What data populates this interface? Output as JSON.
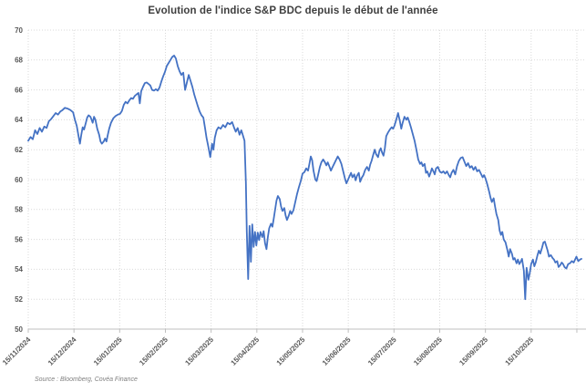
{
  "title": "Evolution de l'indice S&P BDC depuis le début de l'année",
  "source": "Source : Bloomberg, Covéa Finance",
  "colors": {
    "line": "#4472C4",
    "title_text": "#3F3F3F",
    "tick_text": "#595959",
    "gridline": "#D9D9D9",
    "axis_line": "#BFBFBF",
    "background": "#FFFFFF"
  },
  "chart_data": {
    "type": "line",
    "title": "Evolution de l'indice S&P BDC depuis le début de l'année",
    "series_name": "Indice S&P BDC",
    "xlabel": "",
    "ylabel": "",
    "legend": "none",
    "grid": "dotted",
    "ylim": [
      50,
      70
    ],
    "y_ticks": [
      50,
      52,
      54,
      56,
      58,
      60,
      62,
      64,
      66,
      68,
      70
    ],
    "xlim": [
      0,
      12.2
    ],
    "x_unit": "months since 15/11/2024 (integer t = the 15th of each month)",
    "x_tick_labels": [
      "15/11/2024",
      "15/12/2024",
      "15/01/2025",
      "15/02/2025",
      "15/03/2025",
      "15/04/2025",
      "15/05/2025",
      "15/06/2025",
      "15/07/2025",
      "15/08/2025",
      "15/09/2025",
      "15/10/2025"
    ],
    "x_gridline_count": 13,
    "points": [
      [
        0.0,
        62.6
      ],
      [
        0.05,
        62.85
      ],
      [
        0.1,
        62.7
      ],
      [
        0.15,
        63.3
      ],
      [
        0.2,
        63.05
      ],
      [
        0.25,
        63.45
      ],
      [
        0.3,
        63.2
      ],
      [
        0.35,
        63.55
      ],
      [
        0.4,
        63.45
      ],
      [
        0.45,
        63.9
      ],
      [
        0.5,
        64.05
      ],
      [
        0.55,
        64.25
      ],
      [
        0.6,
        64.45
      ],
      [
        0.65,
        64.35
      ],
      [
        0.7,
        64.55
      ],
      [
        0.75,
        64.65
      ],
      [
        0.8,
        64.8
      ],
      [
        0.86,
        64.75
      ],
      [
        0.92,
        64.65
      ],
      [
        0.98,
        64.5
      ],
      [
        1.02,
        64.0
      ],
      [
        1.06,
        63.6
      ],
      [
        1.1,
        62.9
      ],
      [
        1.13,
        62.4
      ],
      [
        1.16,
        63.0
      ],
      [
        1.19,
        63.5
      ],
      [
        1.22,
        63.35
      ],
      [
        1.26,
        63.8
      ],
      [
        1.29,
        64.15
      ],
      [
        1.32,
        64.3
      ],
      [
        1.36,
        64.2
      ],
      [
        1.38,
        64.05
      ],
      [
        1.41,
        63.8
      ],
      [
        1.44,
        64.2
      ],
      [
        1.47,
        64.0
      ],
      [
        1.51,
        63.4
      ],
      [
        1.55,
        63.0
      ],
      [
        1.58,
        62.55
      ],
      [
        1.61,
        62.4
      ],
      [
        1.65,
        62.55
      ],
      [
        1.68,
        62.75
      ],
      [
        1.71,
        62.55
      ],
      [
        1.74,
        63.0
      ],
      [
        1.77,
        63.4
      ],
      [
        1.81,
        63.8
      ],
      [
        1.86,
        64.1
      ],
      [
        1.91,
        64.25
      ],
      [
        1.96,
        64.35
      ],
      [
        2.01,
        64.4
      ],
      [
        2.05,
        64.6
      ],
      [
        2.09,
        65.0
      ],
      [
        2.13,
        65.2
      ],
      [
        2.17,
        65.1
      ],
      [
        2.21,
        65.3
      ],
      [
        2.25,
        65.45
      ],
      [
        2.29,
        65.4
      ],
      [
        2.33,
        65.6
      ],
      [
        2.37,
        65.7
      ],
      [
        2.41,
        65.8
      ],
      [
        2.44,
        65.1
      ],
      [
        2.47,
        65.9
      ],
      [
        2.51,
        66.2
      ],
      [
        2.55,
        66.45
      ],
      [
        2.59,
        66.5
      ],
      [
        2.63,
        66.4
      ],
      [
        2.67,
        66.3
      ],
      [
        2.71,
        66.0
      ],
      [
        2.75,
        65.95
      ],
      [
        2.79,
        66.05
      ],
      [
        2.83,
        65.95
      ],
      [
        2.87,
        66.15
      ],
      [
        2.91,
        66.55
      ],
      [
        2.95,
        66.9
      ],
      [
        2.99,
        67.2
      ],
      [
        3.03,
        67.6
      ],
      [
        3.07,
        67.8
      ],
      [
        3.11,
        68.0
      ],
      [
        3.15,
        68.2
      ],
      [
        3.19,
        68.3
      ],
      [
        3.23,
        68.1
      ],
      [
        3.27,
        67.6
      ],
      [
        3.31,
        67.25
      ],
      [
        3.35,
        67.0
      ],
      [
        3.39,
        67.15
      ],
      [
        3.43,
        66.0
      ],
      [
        3.47,
        66.5
      ],
      [
        3.51,
        67.0
      ],
      [
        3.55,
        66.6
      ],
      [
        3.59,
        66.2
      ],
      [
        3.63,
        65.7
      ],
      [
        3.67,
        65.3
      ],
      [
        3.71,
        64.9
      ],
      [
        3.75,
        64.55
      ],
      [
        3.79,
        64.3
      ],
      [
        3.83,
        64.15
      ],
      [
        3.87,
        63.4
      ],
      [
        3.9,
        62.8
      ],
      [
        3.94,
        62.2
      ],
      [
        3.98,
        61.5
      ],
      [
        4.02,
        62.4
      ],
      [
        4.05,
        62.0
      ],
      [
        4.08,
        62.8
      ],
      [
        4.12,
        63.3
      ],
      [
        4.16,
        63.5
      ],
      [
        4.21,
        63.4
      ],
      [
        4.26,
        63.65
      ],
      [
        4.31,
        63.5
      ],
      [
        4.36,
        63.8
      ],
      [
        4.41,
        63.7
      ],
      [
        4.46,
        63.85
      ],
      [
        4.5,
        63.5
      ],
      [
        4.54,
        63.2
      ],
      [
        4.58,
        63.45
      ],
      [
        4.62,
        63.0
      ],
      [
        4.66,
        63.3
      ],
      [
        4.7,
        62.9
      ],
      [
        4.73,
        62.6
      ],
      [
        4.76,
        59.8
      ],
      [
        4.78,
        56.5
      ],
      [
        4.81,
        53.35
      ],
      [
        4.84,
        56.9
      ],
      [
        4.87,
        54.5
      ],
      [
        4.9,
        57.0
      ],
      [
        4.93,
        55.5
      ],
      [
        4.96,
        56.5
      ],
      [
        4.99,
        55.6
      ],
      [
        5.02,
        56.45
      ],
      [
        5.05,
        55.95
      ],
      [
        5.08,
        56.5
      ],
      [
        5.12,
        56.15
      ],
      [
        5.15,
        56.55
      ],
      [
        5.18,
        55.75
      ],
      [
        5.21,
        55.35
      ],
      [
        5.24,
        56.15
      ],
      [
        5.27,
        56.75
      ],
      [
        5.31,
        57.05
      ],
      [
        5.34,
        56.85
      ],
      [
        5.37,
        57.4
      ],
      [
        5.4,
        58.0
      ],
      [
        5.43,
        58.6
      ],
      [
        5.46,
        58.9
      ],
      [
        5.5,
        58.7
      ],
      [
        5.53,
        58.2
      ],
      [
        5.56,
        57.9
      ],
      [
        5.6,
        58.1
      ],
      [
        5.63,
        57.6
      ],
      [
        5.66,
        57.3
      ],
      [
        5.7,
        57.6
      ],
      [
        5.73,
        57.9
      ],
      [
        5.76,
        57.7
      ],
      [
        5.8,
        57.95
      ],
      [
        5.84,
        58.5
      ],
      [
        5.88,
        59.05
      ],
      [
        5.92,
        59.5
      ],
      [
        5.96,
        59.9
      ],
      [
        6.0,
        60.4
      ],
      [
        6.04,
        60.5
      ],
      [
        6.08,
        60.75
      ],
      [
        6.12,
        60.6
      ],
      [
        6.15,
        61.05
      ],
      [
        6.18,
        61.55
      ],
      [
        6.21,
        61.3
      ],
      [
        6.24,
        60.6
      ],
      [
        6.28,
        60.0
      ],
      [
        6.31,
        59.9
      ],
      [
        6.34,
        60.3
      ],
      [
        6.38,
        60.85
      ],
      [
        6.41,
        61.15
      ],
      [
        6.45,
        61.35
      ],
      [
        6.49,
        61.15
      ],
      [
        6.52,
        60.95
      ],
      [
        6.55,
        61.15
      ],
      [
        6.59,
        60.85
      ],
      [
        6.62,
        60.6
      ],
      [
        6.65,
        60.8
      ],
      [
        6.69,
        61.05
      ],
      [
        6.73,
        61.3
      ],
      [
        6.77,
        61.55
      ],
      [
        6.81,
        61.35
      ],
      [
        6.85,
        61.05
      ],
      [
        6.89,
        60.55
      ],
      [
        6.93,
        60.05
      ],
      [
        6.96,
        59.75
      ],
      [
        6.99,
        59.95
      ],
      [
        7.03,
        60.25
      ],
      [
        7.06,
        60.45
      ],
      [
        7.09,
        60.15
      ],
      [
        7.13,
        60.35
      ],
      [
        7.16,
        59.95
      ],
      [
        7.19,
        60.25
      ],
      [
        7.23,
        60.45
      ],
      [
        7.26,
        59.85
      ],
      [
        7.29,
        60.1
      ],
      [
        7.33,
        60.3
      ],
      [
        7.37,
        60.65
      ],
      [
        7.41,
        60.85
      ],
      [
        7.45,
        60.6
      ],
      [
        7.48,
        61.0
      ],
      [
        7.51,
        61.25
      ],
      [
        7.55,
        61.7
      ],
      [
        7.58,
        62.0
      ],
      [
        7.61,
        61.7
      ],
      [
        7.65,
        61.5
      ],
      [
        7.68,
        61.9
      ],
      [
        7.71,
        62.1
      ],
      [
        7.74,
        61.8
      ],
      [
        7.77,
        61.6
      ],
      [
        7.8,
        62.1
      ],
      [
        7.83,
        62.9
      ],
      [
        7.87,
        63.15
      ],
      [
        7.91,
        63.35
      ],
      [
        7.95,
        63.5
      ],
      [
        7.98,
        63.4
      ],
      [
        8.01,
        63.6
      ],
      [
        8.05,
        64.0
      ],
      [
        8.09,
        64.45
      ],
      [
        8.13,
        63.9
      ],
      [
        8.16,
        63.4
      ],
      [
        8.19,
        63.8
      ],
      [
        8.23,
        64.2
      ],
      [
        8.27,
        64.0
      ],
      [
        8.3,
        64.15
      ],
      [
        8.33,
        63.9
      ],
      [
        8.37,
        63.5
      ],
      [
        8.41,
        63.05
      ],
      [
        8.45,
        62.6
      ],
      [
        8.49,
        62.0
      ],
      [
        8.53,
        61.35
      ],
      [
        8.57,
        61.05
      ],
      [
        8.6,
        61.15
      ],
      [
        8.63,
        60.9
      ],
      [
        8.67,
        61.05
      ],
      [
        8.7,
        60.45
      ],
      [
        8.73,
        60.55
      ],
      [
        8.77,
        60.2
      ],
      [
        8.8,
        60.45
      ],
      [
        8.83,
        60.75
      ],
      [
        8.87,
        60.5
      ],
      [
        8.89,
        60.35
      ],
      [
        8.92,
        60.75
      ],
      [
        8.96,
        60.85
      ],
      [
        9.0,
        60.55
      ],
      [
        9.04,
        60.45
      ],
      [
        9.08,
        60.55
      ],
      [
        9.12,
        60.4
      ],
      [
        9.16,
        60.55
      ],
      [
        9.2,
        60.3
      ],
      [
        9.23,
        60.15
      ],
      [
        9.26,
        60.45
      ],
      [
        9.3,
        60.65
      ],
      [
        9.34,
        60.35
      ],
      [
        9.38,
        60.9
      ],
      [
        9.42,
        61.25
      ],
      [
        9.46,
        61.45
      ],
      [
        9.5,
        61.5
      ],
      [
        9.54,
        61.2
      ],
      [
        9.58,
        60.9
      ],
      [
        9.62,
        61.1
      ],
      [
        9.66,
        60.8
      ],
      [
        9.7,
        60.9
      ],
      [
        9.74,
        60.65
      ],
      [
        9.78,
        60.85
      ],
      [
        9.82,
        60.55
      ],
      [
        9.86,
        60.65
      ],
      [
        9.9,
        60.4
      ],
      [
        9.94,
        60.15
      ],
      [
        9.97,
        60.3
      ],
      [
        10.0,
        60.1
      ],
      [
        10.04,
        59.7
      ],
      [
        10.08,
        59.2
      ],
      [
        10.11,
        58.8
      ],
      [
        10.14,
        58.5
      ],
      [
        10.18,
        58.75
      ],
      [
        10.21,
        58.2
      ],
      [
        10.24,
        57.7
      ],
      [
        10.28,
        57.3
      ],
      [
        10.31,
        56.6
      ],
      [
        10.34,
        56.3
      ],
      [
        10.37,
        56.5
      ],
      [
        10.4,
        56.0
      ],
      [
        10.44,
        55.8
      ],
      [
        10.48,
        55.3
      ],
      [
        10.51,
        54.85
      ],
      [
        10.54,
        55.35
      ],
      [
        10.58,
        55.05
      ],
      [
        10.61,
        54.65
      ],
      [
        10.64,
        54.75
      ],
      [
        10.68,
        54.4
      ],
      [
        10.71,
        54.65
      ],
      [
        10.74,
        54.35
      ],
      [
        10.77,
        54.5
      ],
      [
        10.8,
        54.7
      ],
      [
        10.84,
        53.9
      ],
      [
        10.87,
        52.0
      ],
      [
        10.9,
        54.1
      ],
      [
        10.94,
        53.3
      ],
      [
        10.97,
        53.75
      ],
      [
        11.0,
        54.35
      ],
      [
        11.04,
        54.65
      ],
      [
        11.07,
        54.2
      ],
      [
        11.1,
        54.45
      ],
      [
        11.14,
        54.95
      ],
      [
        11.17,
        55.25
      ],
      [
        11.2,
        55.05
      ],
      [
        11.24,
        55.45
      ],
      [
        11.27,
        55.8
      ],
      [
        11.3,
        55.85
      ],
      [
        11.33,
        55.55
      ],
      [
        11.36,
        55.25
      ],
      [
        11.39,
        54.85
      ],
      [
        11.43,
        54.95
      ],
      [
        11.47,
        54.75
      ],
      [
        11.5,
        54.65
      ],
      [
        11.53,
        54.45
      ],
      [
        11.57,
        54.55
      ],
      [
        11.6,
        54.15
      ],
      [
        11.63,
        54.25
      ],
      [
        11.67,
        54.45
      ],
      [
        11.7,
        54.35
      ],
      [
        11.73,
        54.15
      ],
      [
        11.77,
        54.05
      ],
      [
        11.81,
        54.35
      ],
      [
        11.85,
        54.4
      ],
      [
        11.89,
        54.55
      ],
      [
        11.93,
        54.45
      ],
      [
        11.96,
        54.65
      ],
      [
        11.99,
        54.85
      ],
      [
        12.03,
        54.55
      ],
      [
        12.07,
        54.65
      ],
      [
        12.1,
        54.7
      ]
    ]
  }
}
